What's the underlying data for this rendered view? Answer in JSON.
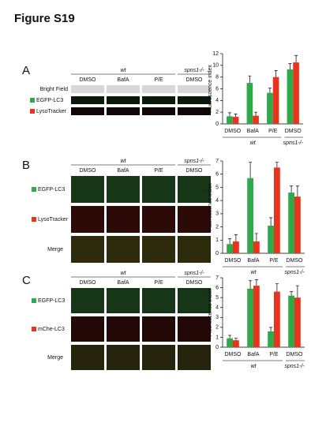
{
  "title": "Figure S19",
  "panels": [
    {
      "label": "A",
      "groups": [
        "wt",
        "spns1-/-"
      ],
      "columns": [
        "DMSO",
        "BafA",
        "P/E",
        "DMSO"
      ],
      "rows": [
        "Bright Field",
        "EGFP-LC3",
        "LysoTracker"
      ]
    },
    {
      "label": "B",
      "groups": [
        "wt",
        "spns1-/-"
      ],
      "columns": [
        "DMSO",
        "BafA",
        "P/E",
        "DMSO"
      ],
      "rows": [
        "EGFP-LC3",
        "LysoTracker",
        "Merge"
      ]
    },
    {
      "label": "C",
      "groups": [
        "wt",
        "spns1-/-"
      ],
      "columns": [
        "DMSO",
        "BafA",
        "P/E",
        "DMSO"
      ],
      "rows": [
        "EGFP-LC3",
        "mChe-LC3",
        "Merge"
      ]
    }
  ],
  "chart_data": [
    {
      "type": "bar",
      "y_label": "Fluorescence index",
      "categories": [
        "DMSO",
        "BafA",
        "P/E",
        "DMSO"
      ],
      "groups": [
        "wt",
        "spns1-/-"
      ],
      "ylim": [
        0,
        12
      ],
      "yticks": [
        0,
        2,
        4,
        6,
        8,
        10,
        12
      ],
      "series": [
        {
          "color": "#2eaa4a",
          "values": [
            1.3,
            7.0,
            5.3,
            9.3
          ],
          "errors": [
            0.6,
            1.2,
            0.8,
            1.0
          ]
        },
        {
          "color": "#e8341c",
          "values": [
            1.2,
            1.4,
            8.0,
            10.5
          ],
          "errors": [
            0.5,
            0.6,
            1.1,
            1.2
          ]
        }
      ]
    },
    {
      "type": "bar",
      "y_label": "Fluorescence index",
      "categories": [
        "DMSO",
        "BafA",
        "P/E",
        "DMSO"
      ],
      "groups": [
        "wt",
        "spns1-/-"
      ],
      "ylim": [
        0,
        7
      ],
      "yticks": [
        0,
        1,
        2,
        3,
        4,
        5,
        6,
        7
      ],
      "series": [
        {
          "color": "#2eaa4a",
          "values": [
            0.7,
            5.7,
            2.1,
            4.6
          ],
          "errors": [
            0.4,
            1.2,
            0.6,
            0.5
          ]
        },
        {
          "color": "#e8341c",
          "values": [
            0.9,
            0.9,
            6.5,
            4.3
          ],
          "errors": [
            0.5,
            0.6,
            0.4,
            0.8
          ]
        }
      ]
    },
    {
      "type": "bar",
      "y_label": "Fluorescence index",
      "categories": [
        "DMSO",
        "BafA",
        "P/E",
        "DMSO"
      ],
      "groups": [
        "wt",
        "spns1-/-"
      ],
      "ylim": [
        0,
        7
      ],
      "yticks": [
        0,
        1,
        2,
        3,
        4,
        5,
        6,
        7
      ],
      "series": [
        {
          "color": "#2eaa4a",
          "values": [
            0.9,
            5.9,
            1.6,
            5.2
          ],
          "errors": [
            0.3,
            0.8,
            0.4,
            0.4
          ]
        },
        {
          "color": "#e8341c",
          "values": [
            0.7,
            6.2,
            5.6,
            5.0
          ],
          "errors": [
            0.2,
            0.6,
            0.8,
            1.2
          ]
        }
      ]
    }
  ]
}
